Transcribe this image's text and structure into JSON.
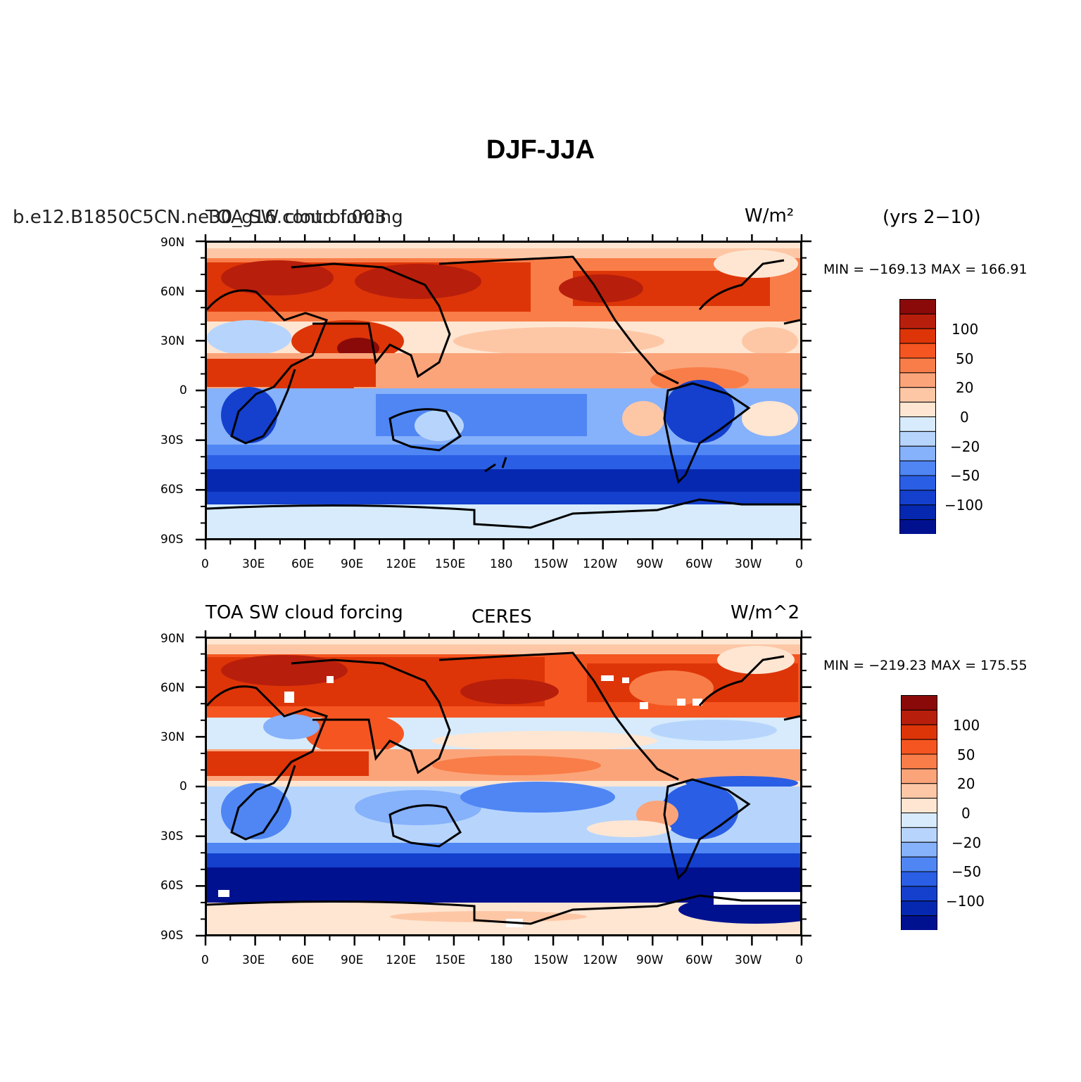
{
  "figure": {
    "title": "DJF-JJA"
  },
  "panels": [
    {
      "left_title": "b.e12.B1850C5CN.ne30_g16.control.003",
      "center_title": "TOA SW cloud forcing",
      "right_title": "W/m²",
      "extra_title": "(yrs 2−10)",
      "stats": "MIN = −169.13  MAX = 166.91"
    },
    {
      "left_title": "TOA SW cloud forcing",
      "center_title": "CERES",
      "right_title": "W/m^2",
      "extra_title": "",
      "stats": "MIN = −219.23  MAX = 175.55"
    }
  ],
  "axes": {
    "lat_ticks": [
      "90N",
      "60N",
      "30N",
      "0",
      "30S",
      "60S",
      "90S"
    ],
    "lon_ticks": [
      "0",
      "30E",
      "60E",
      "90E",
      "120E",
      "150E",
      "180",
      "150W",
      "120W",
      "90W",
      "60W",
      "30W",
      "0"
    ]
  },
  "colorbar": {
    "labels": [
      "100",
      "50",
      "20",
      "0",
      "−20",
      "−50",
      "−100"
    ],
    "colors": [
      "#8a0a0a",
      "#b81e0c",
      "#dd3508",
      "#f55520",
      "#f97d48",
      "#fba47a",
      "#fdc7a6",
      "#fee6d2",
      "#d7ebfc",
      "#b7d5fc",
      "#86b1fb",
      "#4f86f4",
      "#2a5ee5",
      "#1440cd",
      "#0628b0",
      "#001190"
    ]
  },
  "chart_data": [
    {
      "type": "heatmap",
      "title": "DJF-JJA",
      "series": [
        {
          "name": "b.e12.B1850C5CN.ne30_g16.control.003",
          "variable": "TOA SW cloud forcing",
          "units": "W/m²",
          "period": "yrs 2-10"
        }
      ],
      "min": -169.13,
      "max": 166.91,
      "xlim": [
        0,
        360
      ],
      "ylim": [
        -90,
        90
      ],
      "contour_levels": [
        -100,
        -50,
        -20,
        0,
        20,
        50,
        100
      ]
    },
    {
      "type": "heatmap",
      "title": "DJF-JJA",
      "series": [
        {
          "name": "CERES",
          "variable": "TOA SW cloud forcing",
          "units": "W/m^2"
        }
      ],
      "min": -219.23,
      "max": 175.55,
      "xlim": [
        0,
        360
      ],
      "ylim": [
        -90,
        90
      ],
      "contour_levels": [
        -100,
        -50,
        -20,
        0,
        20,
        50,
        100
      ]
    }
  ]
}
